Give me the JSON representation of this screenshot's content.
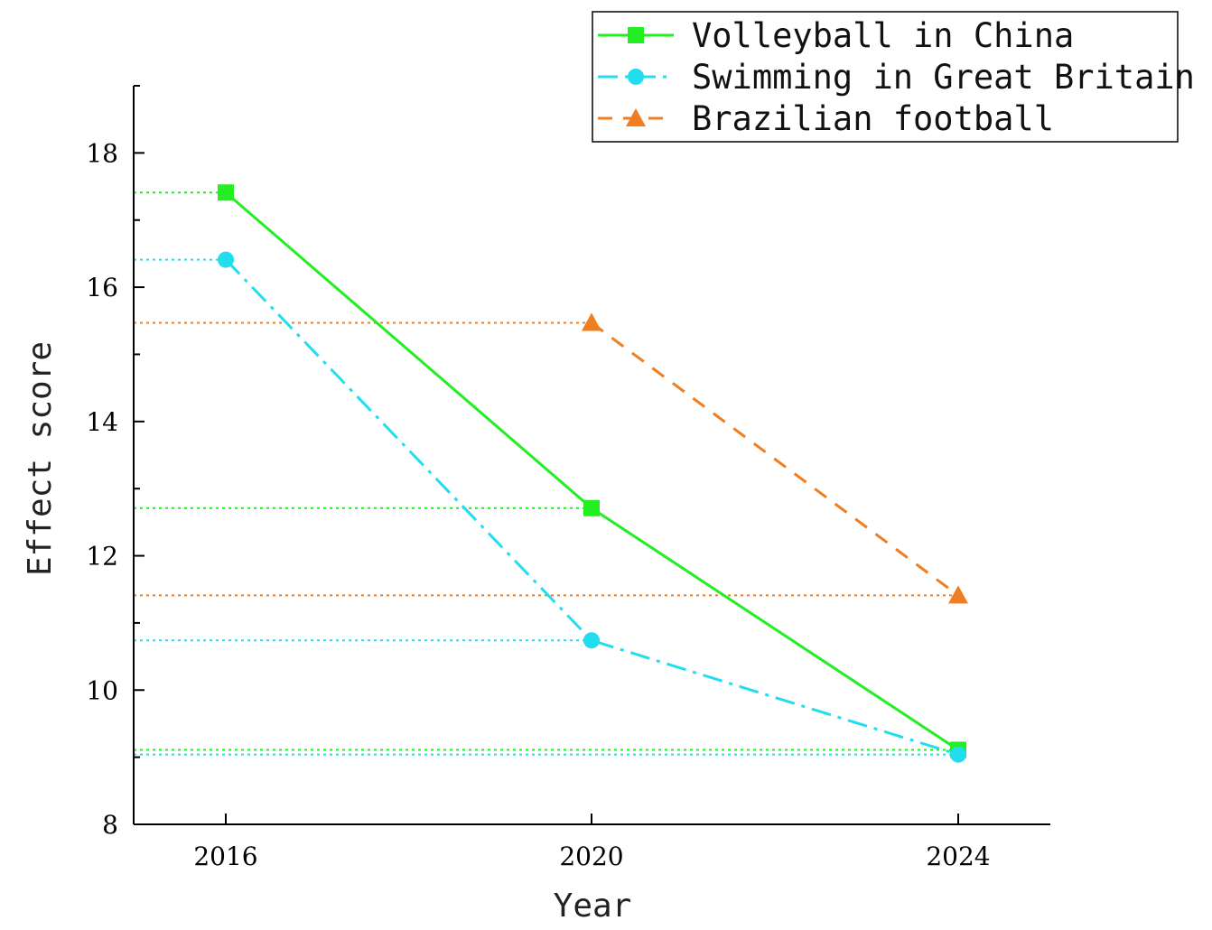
{
  "chart_data": {
    "type": "line",
    "xlabel": "Year",
    "ylabel": "Effect score",
    "categories": [
      "2016",
      "2020",
      "2024"
    ],
    "ylim": [
      8,
      19
    ],
    "yticks": [
      8,
      10,
      12,
      14,
      16,
      18
    ],
    "grid": false,
    "legend_position": "top-right",
    "reference_lines": "dotted horizontal line from y-axis to each data point",
    "series": [
      {
        "name": "Volleyball in China",
        "values": [
          17.41,
          12.71,
          9.11
        ],
        "color": "#22ee22",
        "line_style": "solid",
        "marker": "square"
      },
      {
        "name": "Swimming in Great Britain",
        "values": [
          16.41,
          10.74,
          9.04
        ],
        "color": "#22ddee",
        "line_style": "dash-dot",
        "marker": "circle"
      },
      {
        "name": "Brazilian football",
        "values": [
          null,
          15.47,
          11.41
        ],
        "color": "#f07d1f",
        "line_style": "dashed",
        "marker": "triangle"
      }
    ]
  }
}
